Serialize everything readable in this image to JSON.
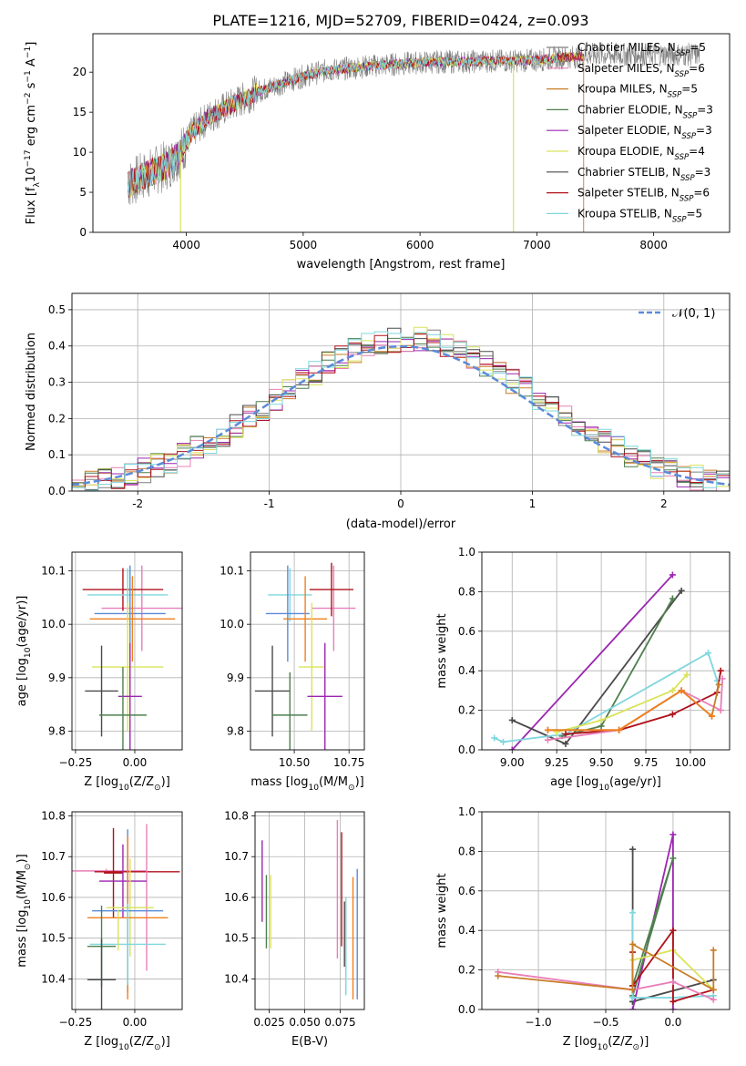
{
  "figure_title": "PLATE=1216, MJD=52709, FIBERID=0424, z=0.093",
  "colors": {
    "Chabrier MILES": "#808080",
    "Salpeter MILES": "#e87fb9",
    "Kroupa MILES": "#c97d27",
    "Chabrier ELODIE": "#4f7f4f",
    "Salpeter ELODIE": "#9b27b0",
    "Kroupa ELODIE": "#d9e35a",
    "Chabrier STELIB": "#4a4a4a",
    "Salpeter STELIB": "#b0121b",
    "Kroupa STELIB": "#7fd7de",
    "MILES_blue": "#5b8bd9",
    "MILES_orange": "#f07f1e",
    "normal": "#5b8bd9"
  },
  "chart_data": [
    {
      "id": "spectrum",
      "type": "line",
      "title": "PLATE=1216, MJD=52709, FIBERID=0424, z=0.093",
      "xlabel": "wavelength [Angstrom, rest frame]",
      "ylabel": "Flux [f",
      "ylabel_rich": [
        "Flux [f",
        "λ",
        "10",
        "−17",
        " erg cm",
        "−2",
        " s",
        "−1",
        " A",
        "−1",
        "]"
      ],
      "xlim": [
        3200,
        8650
      ],
      "ylim": [
        0,
        24.8
      ],
      "xticks": [
        4000,
        5000,
        6000,
        7000,
        8000
      ],
      "yticks": [
        0,
        5,
        10,
        15,
        20
      ],
      "grid": false,
      "legend_position": "top-right",
      "legend": [
        {
          "label": "Chabrier MILES, N",
          "sub": "SSP",
          "suffix": "=5",
          "color": "#808080"
        },
        {
          "label": "Salpeter MILES, N",
          "sub": "SSP",
          "suffix": "=6",
          "color": "#e87fb9"
        },
        {
          "label": "Kroupa MILES, N",
          "sub": "SSP",
          "suffix": "=5",
          "color": "#c97d27"
        },
        {
          "label": "Chabrier ELODIE, N",
          "sub": "SSP",
          "suffix": "=3",
          "color": "#4f7f4f"
        },
        {
          "label": "Salpeter ELODIE, N",
          "sub": "SSP",
          "suffix": "=3",
          "color": "#9b27b0"
        },
        {
          "label": "Kroupa ELODIE, N",
          "sub": "SSP",
          "suffix": "=4",
          "color": "#d9e35a"
        },
        {
          "label": "Chabrier STELIB, N",
          "sub": "SSP",
          "suffix": "=3",
          "color": "#4a4a4a"
        },
        {
          "label": "Salpeter STELIB, N",
          "sub": "SSP",
          "suffix": "=6",
          "color": "#b0121b"
        },
        {
          "label": "Kroupa STELIB, N",
          "sub": "SSP",
          "suffix": "=5",
          "color": "#7fd7de"
        }
      ],
      "continuum": [
        [
          3500,
          6.0
        ],
        [
          3700,
          7.5
        ],
        [
          3850,
          8.5
        ],
        [
          3950,
          10.0
        ],
        [
          4050,
          12.5
        ],
        [
          4200,
          14.5
        ],
        [
          4400,
          16.0
        ],
        [
          4600,
          17.5
        ],
        [
          4800,
          18.5
        ],
        [
          5000,
          19.5
        ],
        [
          5200,
          20.2
        ],
        [
          5400,
          20.5
        ],
        [
          5600,
          20.8
        ],
        [
          5800,
          21.0
        ],
        [
          6000,
          21.2
        ],
        [
          6200,
          21.3
        ],
        [
          6400,
          21.3
        ],
        [
          6600,
          21.4
        ],
        [
          6800,
          21.4
        ],
        [
          7000,
          21.5
        ],
        [
          7200,
          21.8
        ],
        [
          7400,
          22.0
        ]
      ],
      "spikes": [
        {
          "x": 6800,
          "y": 0,
          "color": "#d9e35a"
        },
        {
          "x": 3950,
          "y": 0,
          "color": "#d9e35a"
        },
        {
          "x": 7400,
          "y": 0,
          "color": "#e8906b"
        }
      ]
    },
    {
      "id": "residuals",
      "type": "step",
      "xlabel": "(data-model)/error",
      "ylabel": "Normed distribution",
      "xlim": [
        -2.5,
        2.5
      ],
      "ylim": [
        0,
        0.545
      ],
      "xticks": [
        -2,
        -1,
        0,
        1,
        2
      ],
      "yticks": [
        0.0,
        0.1,
        0.2,
        0.3,
        0.4,
        0.5
      ],
      "grid": true,
      "legend_position": "top-right",
      "legend": [
        {
          "label": "𝒩(0, 1)",
          "color": "#5b8bd9",
          "dashed": true
        }
      ],
      "bin_width": 0.1
    },
    {
      "id": "age_vs_Z",
      "type": "errorbar",
      "xlabel": "Z [log",
      "xlabel_rich": [
        "Z [log",
        "10",
        "(Z/Z",
        "⊙",
        ")]"
      ],
      "ylabel_rich": [
        "age  [log",
        "10",
        "(age/yr)]"
      ],
      "xlim": [
        -0.265,
        0.2
      ],
      "ylim": [
        9.765,
        10.135
      ],
      "xticks": [
        -0.25,
        0.0
      ],
      "xtick_labels": [
        "−0.25",
        "0.00"
      ],
      "yticks": [
        9.8,
        9.9,
        10.0,
        10.1
      ],
      "grid": true,
      "points": [
        {
          "x": 0.03,
          "xerr": 0.17,
          "y": 10.03,
          "yerr": 0.08,
          "color": "#e87fb9"
        },
        {
          "x": -0.05,
          "xerr": 0.17,
          "y": 10.065,
          "yerr": 0.04,
          "color": "#b0121b"
        },
        {
          "x": -0.03,
          "xerr": 0.17,
          "y": 10.055,
          "yerr": 0.05,
          "color": "#7fd7de"
        },
        {
          "x": -0.02,
          "xerr": 0.15,
          "y": 10.02,
          "yerr": 0.09,
          "color": "#5b8bd9"
        },
        {
          "x": -0.01,
          "xerr": 0.18,
          "y": 10.01,
          "yerr": 0.08,
          "color": "#f07f1e"
        },
        {
          "x": -0.03,
          "xerr": 0.15,
          "y": 9.92,
          "yerr": 0.12,
          "color": "#d9e35a"
        },
        {
          "x": -0.02,
          "xerr": 0.05,
          "y": 9.865,
          "yerr": 0.1,
          "color": "#9b27b0"
        },
        {
          "x": -0.14,
          "xerr": 0.07,
          "y": 9.875,
          "yerr": 0.085,
          "color": "#4a4a4a"
        },
        {
          "x": -0.05,
          "xerr": 0.1,
          "y": 9.83,
          "yerr": 0.09,
          "color": "#4f7f4f"
        }
      ]
    },
    {
      "id": "age_vs_mass",
      "type": "errorbar",
      "xlabel_rich": [
        "mass [log",
        "10",
        "(M/M",
        "⊙",
        ")]"
      ],
      "xlim": [
        10.3,
        10.82
      ],
      "ylim": [
        9.765,
        10.135
      ],
      "xticks": [
        10.5,
        10.75
      ],
      "xtick_labels": [
        "10.50",
        "10.75"
      ],
      "yticks": [
        9.8,
        9.9,
        10.0,
        10.1
      ],
      "grid": true,
      "points": [
        {
          "x": 10.68,
          "xerr": 0.1,
          "y": 10.03,
          "yerr": 0.08,
          "color": "#e87fb9"
        },
        {
          "x": 10.67,
          "xerr": 0.1,
          "y": 10.065,
          "yerr": 0.05,
          "color": "#b0121b"
        },
        {
          "x": 10.48,
          "xerr": 0.1,
          "y": 10.055,
          "yerr": 0.05,
          "color": "#7fd7de"
        },
        {
          "x": 10.47,
          "xerr": 0.1,
          "y": 10.02,
          "yerr": 0.09,
          "color": "#5b8bd9"
        },
        {
          "x": 10.55,
          "xerr": 0.1,
          "y": 10.01,
          "yerr": 0.08,
          "color": "#f07f1e"
        },
        {
          "x": 10.58,
          "xerr": 0.06,
          "y": 9.92,
          "yerr": 0.12,
          "color": "#d9e35a"
        },
        {
          "x": 10.64,
          "xerr": 0.08,
          "y": 9.865,
          "yerr": 0.1,
          "color": "#9b27b0"
        },
        {
          "x": 10.4,
          "xerr": 0.08,
          "y": 9.875,
          "yerr": 0.085,
          "color": "#4a4a4a"
        },
        {
          "x": 10.48,
          "xerr": 0.08,
          "y": 9.83,
          "yerr": 0.08,
          "color": "#4f7f4f"
        }
      ]
    },
    {
      "id": "weight_vs_age",
      "type": "line",
      "xlabel_rich": [
        "age  [log",
        "10",
        "(age/yr)]"
      ],
      "ylabel": "mass weight",
      "xlim": [
        8.83,
        10.22
      ],
      "ylim": [
        0,
        1.0
      ],
      "xticks": [
        9.0,
        9.25,
        9.5,
        9.75,
        10.0
      ],
      "xtick_labels": [
        "9.00",
        "9.25",
        "9.50",
        "9.75",
        "10.00"
      ],
      "yticks": [
        0.0,
        0.2,
        0.4,
        0.6,
        0.8,
        1.0
      ],
      "grid": true,
      "series": [
        {
          "color": "#9b27b0",
          "x": [
            9.0,
            9.9
          ],
          "y": [
            0.0,
            0.885
          ]
        },
        {
          "color": "#4a4a4a",
          "x": [
            9.0,
            9.3,
            9.95
          ],
          "y": [
            0.15,
            0.03,
            0.805
          ]
        },
        {
          "color": "#4f7f4f",
          "x": [
            9.28,
            9.5,
            9.9
          ],
          "y": [
            0.07,
            0.12,
            0.765
          ]
        },
        {
          "color": "#7fd7de",
          "x": [
            8.9,
            8.95,
            9.3,
            10.1,
            10.15
          ],
          "y": [
            0.06,
            0.04,
            0.08,
            0.49,
            0.35
          ]
        },
        {
          "color": "#d9e35a",
          "x": [
            9.25,
            9.5,
            9.9,
            9.98
          ],
          "y": [
            0.09,
            0.15,
            0.3,
            0.38
          ]
        },
        {
          "color": "#b0121b",
          "x": [
            9.3,
            9.6,
            9.9,
            10.15,
            10.17
          ],
          "y": [
            0.08,
            0.1,
            0.18,
            0.29,
            0.4
          ]
        },
        {
          "color": "#e87fb9",
          "x": [
            9.2,
            9.6,
            9.95,
            10.17,
            10.18
          ],
          "y": [
            0.05,
            0.1,
            0.3,
            0.2,
            0.36
          ]
        },
        {
          "color": "#c97d27",
          "x": [
            9.2,
            9.6,
            9.95,
            10.12,
            10.16
          ],
          "y": [
            0.1,
            0.1,
            0.3,
            0.17,
            0.33
          ]
        },
        {
          "color": "#f07f1e",
          "x": [
            9.2,
            9.6,
            9.95,
            10.12
          ],
          "y": [
            0.1,
            0.1,
            0.3,
            0.17
          ]
        }
      ]
    },
    {
      "id": "mass_vs_Z",
      "type": "errorbar",
      "xlabel_rich": [
        "Z [log",
        "10",
        "(Z/Z",
        "⊙",
        ")]"
      ],
      "ylabel_rich": [
        "mass [log",
        "10",
        "(M/M",
        "⊙",
        ")]"
      ],
      "xlim": [
        -0.265,
        0.2
      ],
      "ylim": [
        10.325,
        10.81
      ],
      "xticks": [
        -0.25,
        0.0
      ],
      "xtick_labels": [
        "−0.25",
        "0.00"
      ],
      "yticks": [
        10.4,
        10.5,
        10.6,
        10.7,
        10.8
      ],
      "grid": true,
      "points": [
        {
          "x": -0.12,
          "xerr": 0.17,
          "y": 10.665,
          "yerr": 0.005,
          "color": "#e87fb9"
        },
        {
          "x": -0.09,
          "xerr": 0.04,
          "y": 10.66,
          "yerr": 0.11,
          "color": "#b0121b"
        },
        {
          "x": 0.01,
          "xerr": 0.18,
          "y": 10.663,
          "yerr": 0.0,
          "color": "#b0121b"
        },
        {
          "x": 0.05,
          "xerr": 0.0,
          "y": 10.6,
          "yerr": 0.18,
          "color": "#e87fb9"
        },
        {
          "x": -0.05,
          "xerr": 0.1,
          "y": 10.64,
          "yerr": 0.09,
          "color": "#9b27b0"
        },
        {
          "x": -0.02,
          "xerr": 0.1,
          "y": 10.575,
          "yerr": 0.12,
          "color": "#d9e35a"
        },
        {
          "x": -0.03,
          "xerr": 0.15,
          "y": 10.567,
          "yerr": 0.2,
          "color": "#5b8bd9"
        },
        {
          "x": -0.03,
          "xerr": 0.17,
          "y": 10.55,
          "yerr": 0.2,
          "color": "#f07f1e"
        },
        {
          "x": -0.03,
          "xerr": 0.16,
          "y": 10.485,
          "yerr": 0.1,
          "color": "#7fd7de"
        },
        {
          "x": -0.14,
          "xerr": 0.06,
          "y": 10.48,
          "yerr": 0.1,
          "color": "#4f7f4f"
        },
        {
          "x": -0.14,
          "xerr": 0.06,
          "y": 10.398,
          "yerr": 0.1,
          "color": "#4a4a4a"
        },
        {
          "x": -0.07,
          "xerr": 0.0,
          "y": 10.52,
          "yerr": 0.05,
          "color": "#d9e35a"
        }
      ]
    },
    {
      "id": "mass_vs_EBV",
      "type": "errorbar",
      "xlabel": "E(B-V)",
      "xlim": [
        0.015,
        0.092
      ],
      "ylim": [
        10.325,
        10.81
      ],
      "xticks": [
        0.025,
        0.05,
        0.075
      ],
      "xtick_labels": [
        "0.025",
        "0.050",
        "0.075"
      ],
      "yticks": [
        10.4,
        10.5,
        10.6,
        10.7,
        10.8
      ],
      "grid": true,
      "points": [
        {
          "x": 0.02,
          "xerr": 0,
          "y": 10.64,
          "yerr": 0.1,
          "color": "#9b27b0"
        },
        {
          "x": 0.023,
          "xerr": 0,
          "y": 10.565,
          "yerr": 0.09,
          "color": "#4f7f4f"
        },
        {
          "x": 0.026,
          "xerr": 0,
          "y": 10.565,
          "yerr": 0.09,
          "color": "#d9e35a"
        },
        {
          "x": 0.073,
          "xerr": 0,
          "y": 10.62,
          "yerr": 0.17,
          "color": "#e87fb9"
        },
        {
          "x": 0.076,
          "xerr": 0,
          "y": 10.62,
          "yerr": 0.14,
          "color": "#b0121b"
        },
        {
          "x": 0.078,
          "xerr": 0,
          "y": 10.51,
          "yerr": 0.08,
          "color": "#4a4a4a"
        },
        {
          "x": 0.079,
          "xerr": 0,
          "y": 10.48,
          "yerr": 0.12,
          "color": "#7fd7de"
        },
        {
          "x": 0.084,
          "xerr": 0,
          "y": 10.5,
          "yerr": 0.15,
          "color": "#f07f1e"
        },
        {
          "x": 0.087,
          "xerr": 0,
          "y": 10.51,
          "yerr": 0.16,
          "color": "#5b8bd9"
        }
      ]
    },
    {
      "id": "weight_vs_Z",
      "type": "line",
      "xlabel_rich": [
        "Z [log",
        "10",
        "(Z/Z",
        "⊙",
        ")]"
      ],
      "ylabel": "mass weight",
      "xlim": [
        -1.42,
        0.42
      ],
      "ylim": [
        0,
        1.0
      ],
      "xticks": [
        -1.0,
        -0.5,
        0.0
      ],
      "xtick_labels": [
        "−1.0",
        "−0.5",
        "0.0"
      ],
      "yticks": [
        0.0,
        0.2,
        0.4,
        0.6,
        0.8,
        1.0
      ],
      "grid": true,
      "series": [
        {
          "color": "#4a4a4a",
          "x": [
            -0.3,
            -0.3,
            0.3,
            -0.3
          ],
          "y": [
            0.81,
            0.04,
            0.15,
            0.04
          ]
        },
        {
          "color": "#9b27b0",
          "x": [
            -0.3,
            0.0,
            0.0
          ],
          "y": [
            0.0,
            0.885,
            0.0
          ]
        },
        {
          "color": "#4f7f4f",
          "x": [
            -0.3,
            0.0,
            -0.3
          ],
          "y": [
            0.07,
            0.765,
            0.12
          ]
        },
        {
          "color": "#7fd7de",
          "x": [
            -0.3,
            -0.3,
            0.0,
            0.3
          ],
          "y": [
            0.49,
            0.06,
            0.06,
            0.07
          ]
        },
        {
          "color": "#d9e35a",
          "x": [
            -0.3,
            0.0,
            0.3
          ],
          "y": [
            0.25,
            0.3,
            0.1
          ]
        },
        {
          "color": "#b0121b",
          "x": [
            -0.3,
            -0.3,
            0.0,
            0.0,
            0.3
          ],
          "y": [
            0.29,
            0.12,
            0.4,
            0.04,
            0.1
          ]
        },
        {
          "color": "#e87fb9",
          "x": [
            -1.3,
            -0.3,
            0.0,
            0.3
          ],
          "y": [
            0.19,
            0.1,
            0.14,
            0.05
          ]
        },
        {
          "color": "#c97d27",
          "x": [
            -1.3,
            -0.3,
            -0.3,
            0.3,
            0.3
          ],
          "y": [
            0.17,
            0.1,
            0.33,
            0.1,
            0.3
          ]
        }
      ]
    }
  ]
}
